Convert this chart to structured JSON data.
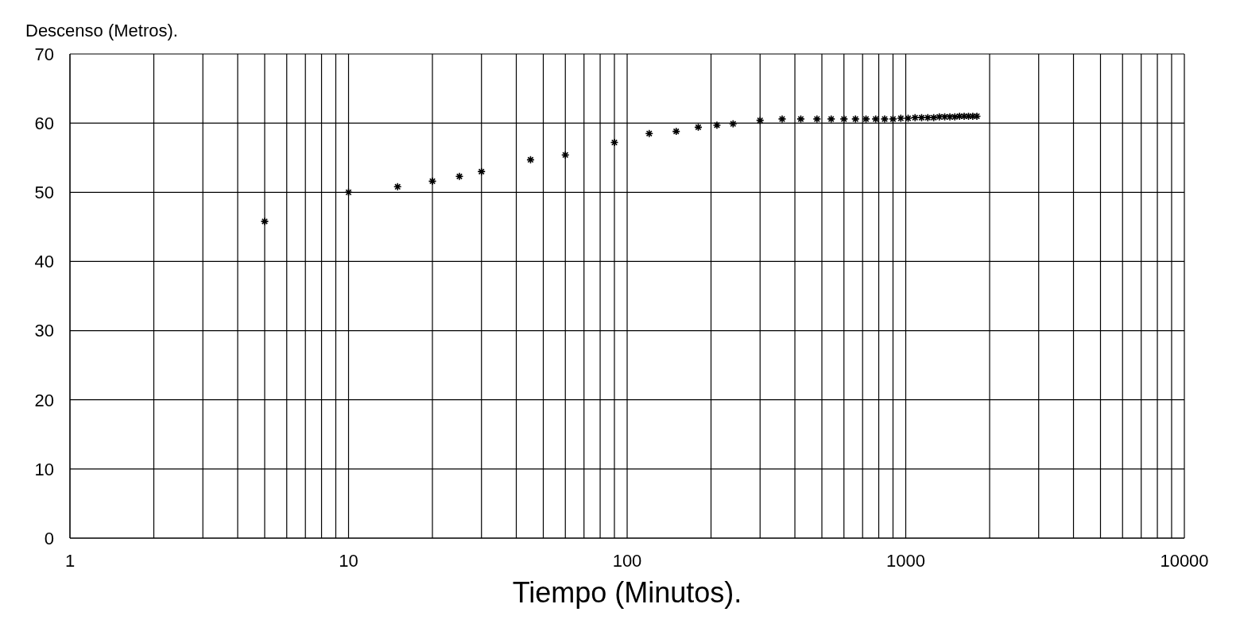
{
  "chart_data": {
    "type": "scatter",
    "ylabel": "Descenso (Metros).",
    "xlabel": "Tiempo (Minutos).",
    "log": "x",
    "grid": true,
    "marker": "cross",
    "xlim": [
      1,
      10000
    ],
    "xticks": [
      1,
      {
        "value": 2,
        "label": null
      },
      {
        "value": 3,
        "label": null
      },
      {
        "value": 4,
        "label": null
      },
      {
        "value": 5,
        "label": null
      },
      {
        "value": 6,
        "label": null
      },
      {
        "value": 7,
        "label": null
      },
      {
        "value": 8,
        "label": null
      },
      {
        "value": 9,
        "label": null
      },
      10,
      {
        "value": 20,
        "label": null
      },
      {
        "value": 30,
        "label": null
      },
      {
        "value": 40,
        "label": null
      },
      {
        "value": 50,
        "label": null
      },
      {
        "value": 60,
        "label": null
      },
      {
        "value": 70,
        "label": null
      },
      {
        "value": 80,
        "label": null
      },
      {
        "value": 90,
        "label": null
      },
      100,
      {
        "value": 200,
        "label": null
      },
      {
        "value": 300,
        "label": null
      },
      {
        "value": 400,
        "label": null
      },
      {
        "value": 500,
        "label": null
      },
      {
        "value": 600,
        "label": null
      },
      {
        "value": 700,
        "label": null
      },
      {
        "value": 800,
        "label": null
      },
      {
        "value": 900,
        "label": null
      },
      1000,
      {
        "value": 2000,
        "label": null
      },
      {
        "value": 3000,
        "label": null
      },
      {
        "value": 4000,
        "label": null
      },
      {
        "value": 5000,
        "label": null
      },
      {
        "value": 6000,
        "label": null
      },
      {
        "value": 7000,
        "label": null
      },
      {
        "value": 8000,
        "label": null
      },
      {
        "value": 9000,
        "label": null
      },
      10000
    ],
    "ylim": [
      0,
      70
    ],
    "yticks": [
      0,
      10,
      20,
      30,
      40,
      50,
      60,
      70
    ],
    "x": [
      5,
      10,
      15,
      20,
      25,
      30,
      45,
      60,
      90,
      120,
      150,
      180,
      210,
      240,
      300,
      360,
      420,
      480,
      540,
      600,
      660,
      720,
      780,
      840,
      900,
      960,
      1020,
      1080,
      1140,
      1200,
      1260,
      1320,
      1380,
      1440,
      1500,
      1560,
      1620,
      1680,
      1740,
      1800
    ],
    "series": [
      {
        "color": "#000000",
        "values": [
          45.8,
          50.0,
          50.8,
          51.6,
          52.3,
          53.0,
          54.7,
          55.4,
          57.2,
          58.5,
          58.8,
          59.4,
          59.7,
          59.9,
          60.4,
          60.6,
          60.6,
          60.6,
          60.6,
          60.6,
          60.6,
          60.6,
          60.6,
          60.6,
          60.6,
          60.7,
          60.7,
          60.8,
          60.8,
          60.8,
          60.8,
          60.9,
          60.9,
          60.9,
          60.9,
          61.0,
          61.0,
          61.0,
          61.0,
          61.0
        ]
      }
    ]
  }
}
